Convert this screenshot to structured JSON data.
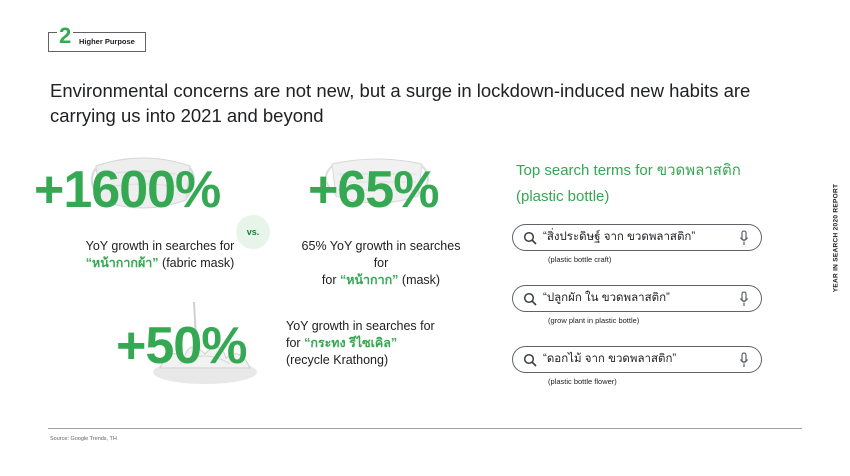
{
  "section": {
    "number": "2",
    "label": "Higher Purpose"
  },
  "headline": "Environmental concerns are not new, but a surge in lockdown-induced new habits are carrying us into 2021 and beyond",
  "side_label": "YEAR IN SEARCH 2020 REPORT",
  "vs_label": "vs.",
  "stats": [
    {
      "value": "+1600%",
      "desc_prefix": "YoY growth in searches for",
      "term": "“หน้ากากผ้า”",
      "desc_suffix": "(fabric mask)",
      "image_icon": "fabric-mask-image"
    },
    {
      "value": "+65%",
      "desc_prefix": "65% YoY growth in searches for",
      "term": "“หน้ากาก”",
      "desc_suffix": "(mask)",
      "image_icon": "surgical-mask-image"
    },
    {
      "value": "+50%",
      "desc_prefix": "YoY growth in searches for",
      "term": "“กระทง รีไซเคิล”",
      "desc_suffix": "(recycle Krathong)",
      "image_icon": "krathong-image"
    }
  ],
  "panel": {
    "title": "Top search terms for ขวดพลาสติก (plastic bottle)",
    "searches": [
      {
        "query": "“สิ่งประดิษฐ์ จาก ขวดพลาสติก”",
        "caption": "(plastic bottle craft)"
      },
      {
        "query": "“ปลูกผัก ใน ขวดพลาสติก”",
        "caption": "(grow plant in plastic bottle)"
      },
      {
        "query": "“ดอกไม้ จาก ขวดพลาสติก”",
        "caption": "(plastic bottle flower)"
      }
    ]
  },
  "source": "Source: Google Trends, TH",
  "colors": {
    "accent_green": "#34a853",
    "text": "#202124",
    "vs_bg": "#e6f4ea"
  }
}
